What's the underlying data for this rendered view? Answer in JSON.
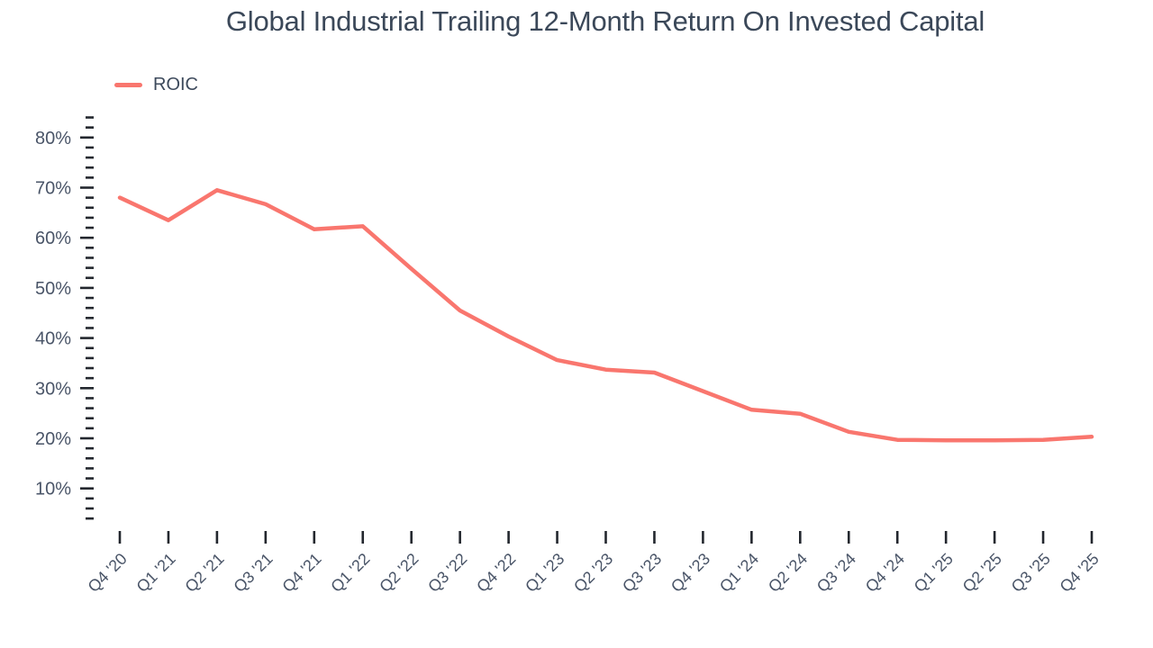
{
  "page": {
    "title": "Global Industrial Trailing 12-Month Return On Invested Capital"
  },
  "legend": {
    "items": [
      {
        "label": "ROIC",
        "color": "#f9766e"
      }
    ]
  },
  "chart_data": {
    "type": "line",
    "title": "Global Industrial Trailing 12-Month Return On Invested Capital",
    "categories": [
      "Q4 '20",
      "Q1 '21",
      "Q2 '21",
      "Q3 '21",
      "Q4 '21",
      "Q1 '22",
      "Q2 '22",
      "Q3 '22",
      "Q4 '22",
      "Q1 '23",
      "Q2 '23",
      "Q3 '23",
      "Q4 '23",
      "Q1 '24",
      "Q2 '24",
      "Q3 '24",
      "Q4 '24",
      "Q1 '25",
      "Q2 '25",
      "Q3 '25",
      "Q4 '25"
    ],
    "series": [
      {
        "name": "ROIC",
        "color": "#f9766e",
        "values": [
          68.0,
          63.5,
          69.5,
          66.7,
          61.7,
          62.3,
          53.8,
          45.5,
          40.3,
          35.6,
          33.7,
          33.1,
          29.4,
          25.7,
          24.9,
          21.3,
          19.7,
          19.6,
          19.6,
          19.7,
          20.3
        ]
      }
    ],
    "xlabel": "",
    "ylabel": "",
    "y_axis": {
      "range": [
        4,
        84
      ],
      "major_ticks": [
        10,
        20,
        30,
        40,
        50,
        60,
        70,
        80
      ],
      "minor_tick_step": 2,
      "tick_label_suffix": "%"
    },
    "grid": false,
    "legend_position": "top-left",
    "colors": {
      "title_text": "#3b4859",
      "axis_label_text": "#4a5568",
      "tick_mark": "#23272e",
      "background": "#ffffff"
    }
  }
}
